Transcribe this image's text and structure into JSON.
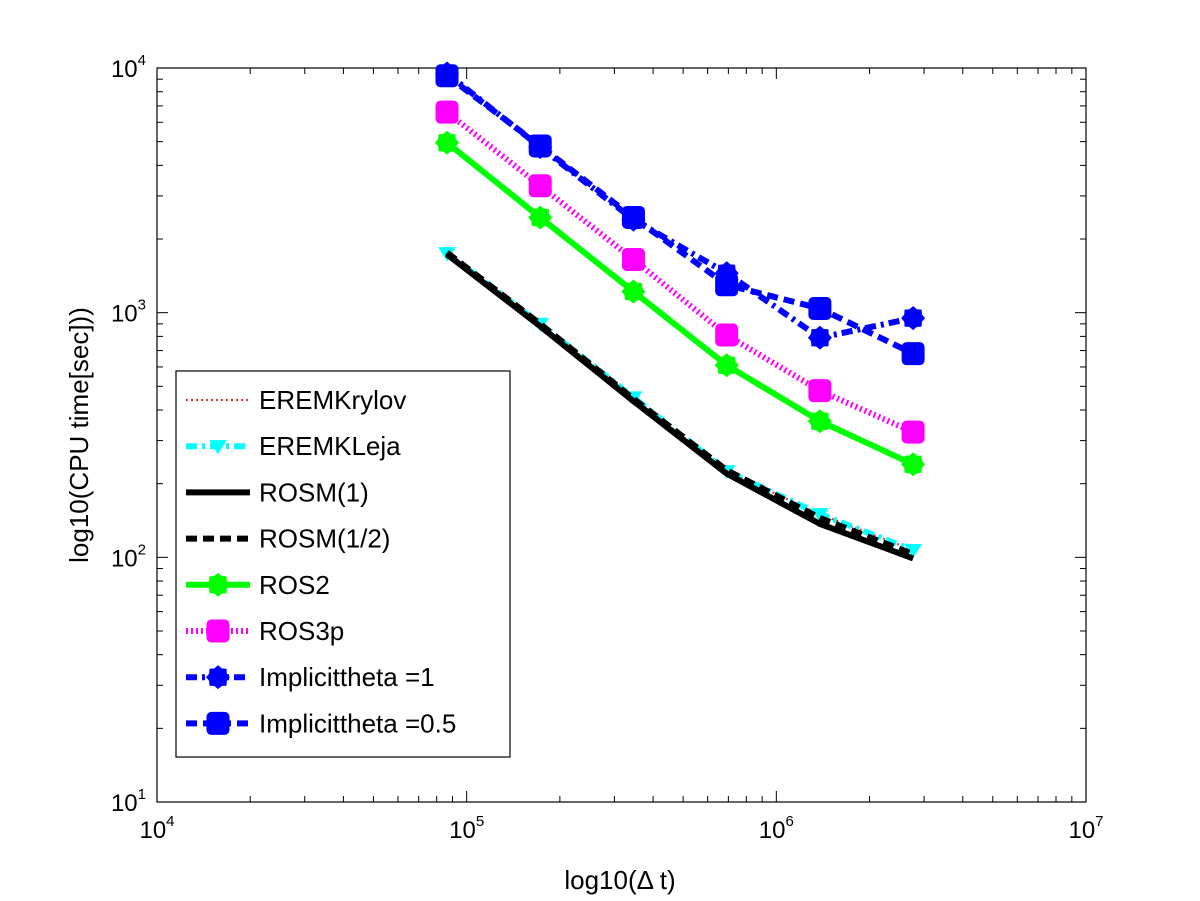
{
  "chart_data": {
    "type": "line",
    "xscale": "log",
    "yscale": "log",
    "xlabel": "log10(Δ t)",
    "ylabel": "log10(CPU time[sec]))",
    "title": "",
    "xlim": [
      10000,
      10000000
    ],
    "ylim": [
      10,
      10000
    ],
    "grid": false,
    "legend_position": "lower-left",
    "x_ticks": [
      {
        "value": 10000,
        "base": "10",
        "exp": "4"
      },
      {
        "value": 100000,
        "base": "10",
        "exp": "5"
      },
      {
        "value": 1000000,
        "base": "10",
        "exp": "6"
      },
      {
        "value": 10000000,
        "base": "10",
        "exp": "7"
      }
    ],
    "y_ticks": [
      {
        "value": 10,
        "base": "10",
        "exp": "1"
      },
      {
        "value": 100,
        "base": "10",
        "exp": "2"
      },
      {
        "value": 1000,
        "base": "10",
        "exp": "3"
      },
      {
        "value": 10000,
        "base": "10",
        "exp": "4"
      }
    ],
    "series": [
      {
        "name": "EREMKrylov",
        "color": "#d04040",
        "line": "dotted",
        "marker": "none",
        "x": [
          86400,
          172800,
          345600,
          691200,
          1382400,
          2764800
        ],
        "y": [
          1750,
          900,
          450,
          225,
          150,
          107
        ]
      },
      {
        "name": "EREMKLeja",
        "color": "#00ffff",
        "line": "dashdot",
        "marker": "triangle-down",
        "x": [
          86400,
          172800,
          345600,
          691200,
          1382400,
          2764800
        ],
        "y": [
          1750,
          900,
          450,
          225,
          150,
          107
        ]
      },
      {
        "name": "ROSM(1)",
        "color": "#000000",
        "line": "solid",
        "marker": "none",
        "x": [
          86400,
          172800,
          345600,
          691200,
          1382400,
          2764800
        ],
        "y": [
          1730,
          880,
          435,
          220,
          137,
          99
        ]
      },
      {
        "name": "ROSM(1/2)",
        "color": "#000000",
        "line": "dashed",
        "marker": "none",
        "x": [
          86400,
          172800,
          345600,
          691200,
          1382400,
          2764800
        ],
        "y": [
          1760,
          900,
          445,
          227,
          145,
          103
        ]
      },
      {
        "name": "ROS2",
        "color": "#00ff00",
        "line": "solid",
        "marker": "star",
        "x": [
          86400,
          172800,
          345600,
          691200,
          1382400,
          2764800
        ],
        "y": [
          4950,
          2450,
          1220,
          610,
          360,
          240
        ]
      },
      {
        "name": "ROS3p",
        "color": "#ff00ff",
        "line": "dotted",
        "marker": "square",
        "x": [
          86400,
          172800,
          345600,
          691200,
          1382400,
          2764800
        ],
        "y": [
          6600,
          3300,
          1650,
          810,
          480,
          325
        ]
      },
      {
        "name": "Implicittheta =1",
        "color": "#0000ff",
        "line": "dashdot",
        "marker": "star",
        "x": [
          86400,
          172800,
          345600,
          691200,
          1382400,
          2764800
        ],
        "y": [
          9500,
          4750,
          2400,
          1450,
          790,
          950
        ]
      },
      {
        "name": "Implicittheta =0.5",
        "color": "#0000ff",
        "line": "dashed",
        "marker": "square",
        "x": [
          86400,
          172800,
          345600,
          691200,
          1382400,
          2764800
        ],
        "y": [
          9300,
          4800,
          2450,
          1300,
          1040,
          680
        ]
      }
    ]
  }
}
